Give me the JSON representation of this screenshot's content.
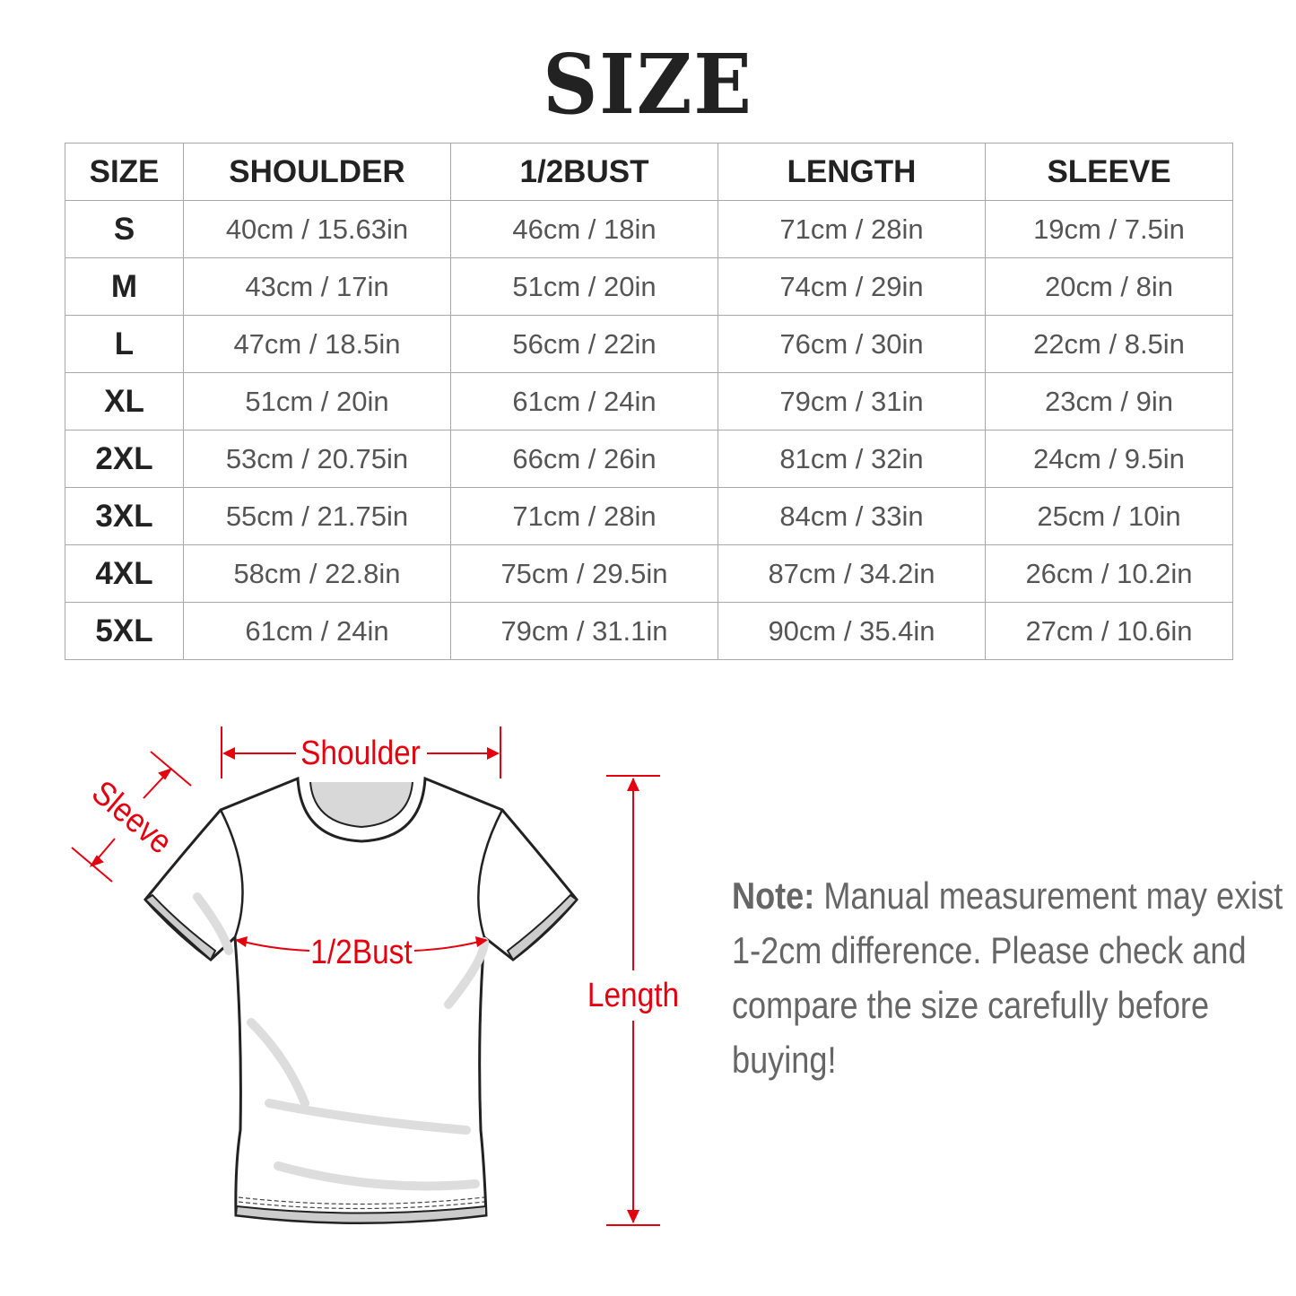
{
  "title": "SIZE",
  "table": {
    "headers": [
      "SIZE",
      "SHOULDER",
      "1/2BUST",
      "LENGTH",
      "SLEEVE"
    ],
    "rows": [
      [
        "S",
        "40cm / 15.63in",
        "46cm / 18in",
        "71cm / 28in",
        "19cm / 7.5in"
      ],
      [
        "M",
        "43cm / 17in",
        "51cm / 20in",
        "74cm / 29in",
        "20cm / 8in"
      ],
      [
        "L",
        "47cm / 18.5in",
        "56cm / 22in",
        "76cm / 30in",
        "22cm / 8.5in"
      ],
      [
        "XL",
        "51cm / 20in",
        "61cm / 24in",
        "79cm / 31in",
        "23cm / 9in"
      ],
      [
        "2XL",
        "53cm / 20.75in",
        "66cm / 26in",
        "81cm / 32in",
        "24cm / 9.5in"
      ],
      [
        "3XL",
        "55cm / 21.75in",
        "71cm / 28in",
        "84cm / 33in",
        "25cm / 10in"
      ],
      [
        "4XL",
        "58cm / 22.8in",
        "75cm / 29.5in",
        "87cm / 34.2in",
        "26cm / 10.2in"
      ],
      [
        "5XL",
        "61cm / 24in",
        "79cm / 31.1in",
        "90cm / 35.4in",
        "27cm / 10.6in"
      ]
    ]
  },
  "diagram": {
    "shoulder": "Shoulder",
    "sleeve": "Sleeve",
    "bust": "1/2Bust",
    "length": "Length",
    "accent_color": "#e3000f"
  },
  "note": {
    "label": "Note:",
    "text": " Manual measurement may exist 1-2cm difference. Please check and compare the size carefully before buying!"
  }
}
